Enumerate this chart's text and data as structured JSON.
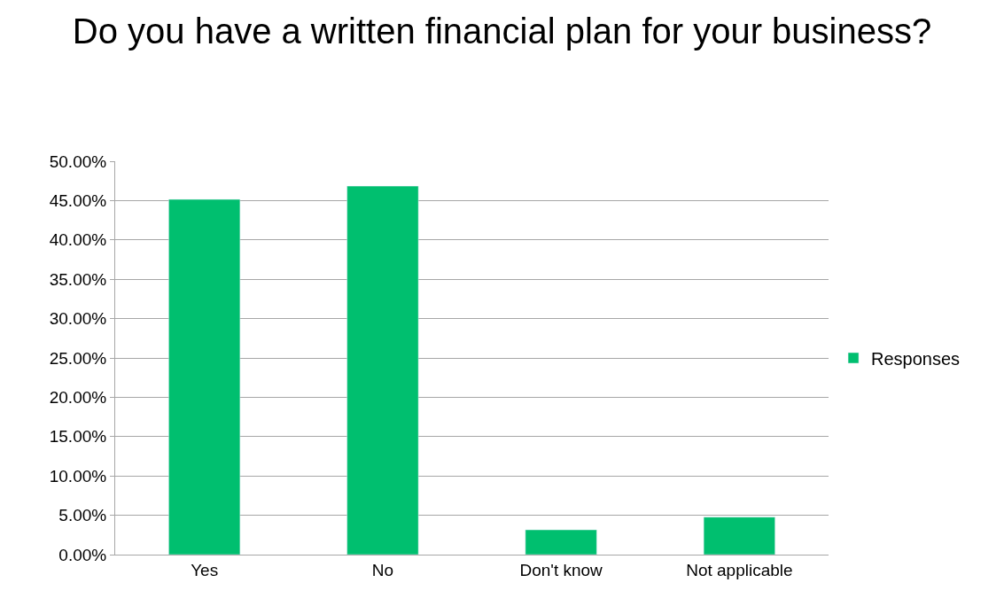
{
  "chart_data": {
    "type": "bar",
    "title": "Do you have a written financial plan for your business?",
    "categories": [
      "Yes",
      "No",
      "Don't know",
      "Not applicable"
    ],
    "series": [
      {
        "name": "Responses",
        "color": "#00bf6f",
        "values": [
          45.15,
          46.84,
          3.15,
          4.77
        ]
      }
    ],
    "ylim": [
      0,
      50
    ],
    "yticks": [
      {
        "value": 0,
        "label": "0.00%"
      },
      {
        "value": 5,
        "label": "5.00%"
      },
      {
        "value": 10,
        "label": "10.00%"
      },
      {
        "value": 15,
        "label": "15.00%"
      },
      {
        "value": 20,
        "label": "20.00%"
      },
      {
        "value": 25,
        "label": "25.00%"
      },
      {
        "value": 30,
        "label": "30.00%"
      },
      {
        "value": 35,
        "label": "35.00%"
      },
      {
        "value": 40,
        "label": "40.00%"
      },
      {
        "value": 45,
        "label": "45.00%"
      },
      {
        "value": 50,
        "label": "50.00%"
      }
    ],
    "grid": "y",
    "legend": "right"
  }
}
